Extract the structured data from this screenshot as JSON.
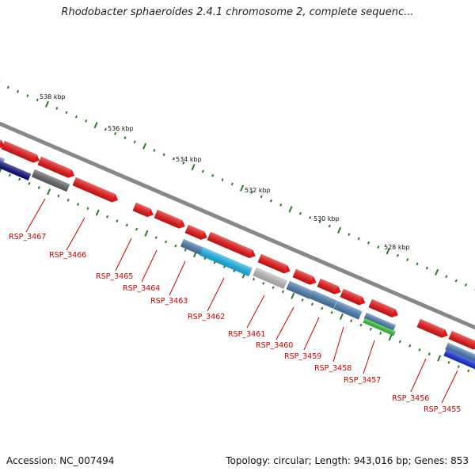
{
  "header": {
    "title": "Rhodobacter sphaeroides 2.4.1 chromosome 2, complete sequenc..."
  },
  "footer": {
    "accession": "Accession: NC_007494",
    "topology": "Topology: circular; Length: 943,016 bp; Genes: 853"
  },
  "colors": {
    "forward_gene": "#ee1111",
    "backbone": "#888888",
    "tick": "#2a7a2a",
    "label": "#cc0000",
    "steelblue": "#4a7fb5",
    "cyan": "#18b8f0",
    "silver": "#c0c0c0",
    "darkgray": "#666666",
    "navy": "#0a0a80",
    "blue": "#1530e0",
    "green": "#33cc33",
    "slateblue": "#6b6bd6"
  },
  "scale_labels": [
    "538 kbp",
    "536 kbp",
    "534 kbp",
    "532 kbp",
    "530 kbp",
    "528 kbp"
  ],
  "gene_labels": [
    "RSP_3467",
    "RSP_3466",
    "RSP_3465",
    "RSP_3464",
    "RSP_3463",
    "RSP_3462",
    "RSP_3461",
    "RSP_3460",
    "RSP_3459",
    "RSP_3458",
    "RSP_3457",
    "RSP_3456",
    "RSP_3455"
  ]
}
